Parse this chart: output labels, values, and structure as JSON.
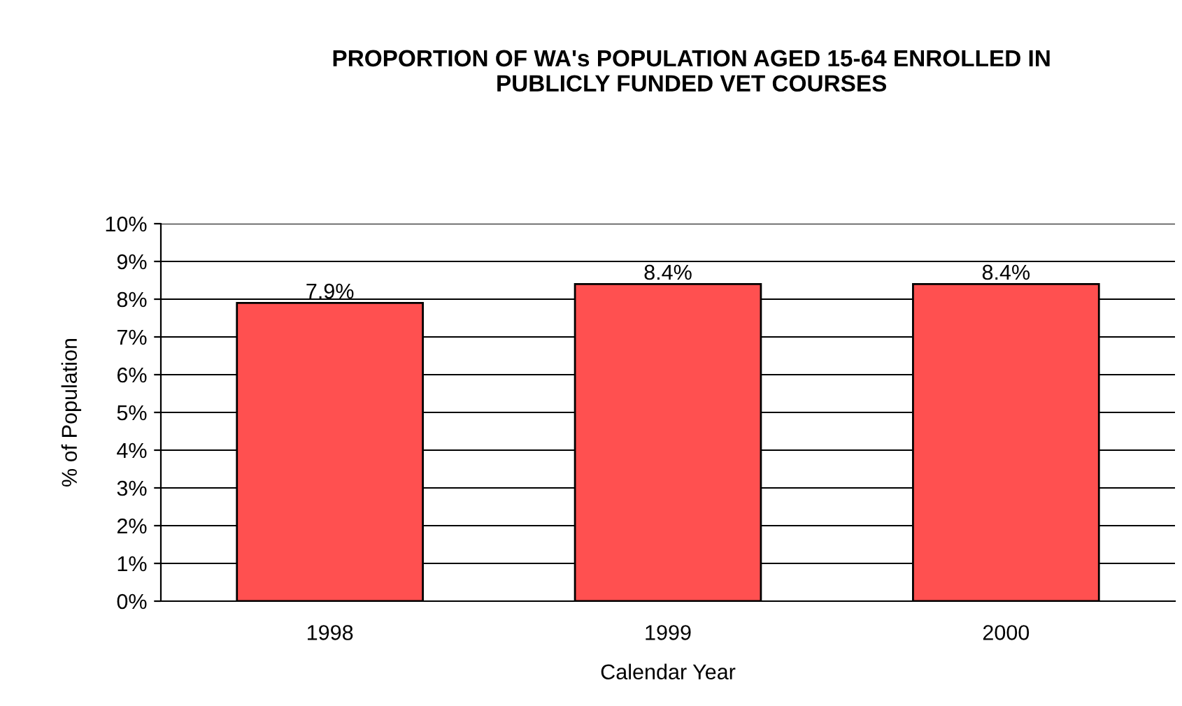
{
  "chart_data": {
    "type": "bar",
    "title": "PROPORTION OF WA's POPULATION AGED 15-64 ENROLLED IN\nPUBLICLY FUNDED VET COURSES",
    "xlabel": "Calendar Year",
    "ylabel": "% of Population",
    "categories": [
      "1998",
      "1999",
      "2000"
    ],
    "values": [
      7.9,
      8.4,
      8.4
    ],
    "value_labels": [
      "7.9%",
      "8.4%",
      "8.4%"
    ],
    "color": "#ff5050",
    "ylim": [
      0,
      10
    ],
    "yticks": [
      {
        "value": 0,
        "label": "0%"
      },
      {
        "value": 1,
        "label": "1%"
      },
      {
        "value": 2,
        "label": "2%"
      },
      {
        "value": 3,
        "label": "3%"
      },
      {
        "value": 4,
        "label": "4%"
      },
      {
        "value": 5,
        "label": "5%"
      },
      {
        "value": 6,
        "label": "6%"
      },
      {
        "value": 7,
        "label": "7%"
      },
      {
        "value": 8,
        "label": "8%"
      },
      {
        "value": 9,
        "label": "9%"
      },
      {
        "value": 10,
        "label": "10%"
      }
    ],
    "grid": "y",
    "legend": false
  }
}
